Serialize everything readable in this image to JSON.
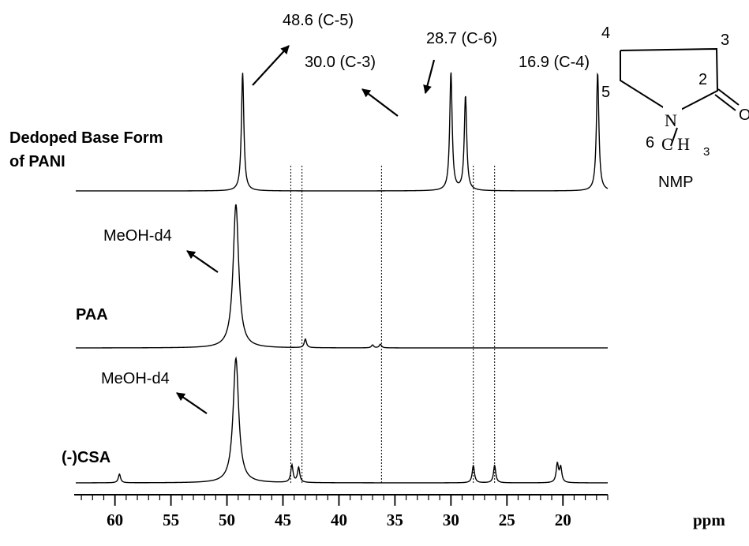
{
  "chart_data": {
    "type": "line",
    "xlabel": "ppm",
    "x_reversed": true,
    "xlim": [
      63.5,
      16.0
    ],
    "major_ticks": [
      60,
      55,
      50,
      45,
      40,
      35,
      30,
      25,
      20
    ],
    "tick_labels": [
      "60",
      "55",
      "50",
      "45",
      "40",
      "35",
      "30",
      "25",
      "20"
    ],
    "x_unit_label": "ppm",
    "series": [
      {
        "name": "Dedoped Base Form of PANI",
        "label_lines": [
          "Dedoped Base Form",
          "of PANI"
        ],
        "peaks": [
          {
            "x": 48.6,
            "height": 1.0
          },
          {
            "x": 30.0,
            "height": 1.0
          },
          {
            "x": 28.7,
            "height": 0.8
          },
          {
            "x": 16.9,
            "height": 1.0
          }
        ]
      },
      {
        "name": "PAA",
        "label_lines": [
          "PAA"
        ],
        "peaks": [
          {
            "x": 49.2,
            "height": 1.0
          },
          {
            "x": 43.0,
            "height": 0.06
          },
          {
            "x": 37.0,
            "height": 0.02
          },
          {
            "x": 36.3,
            "height": 0.025
          }
        ]
      },
      {
        "name": "(-)CSA",
        "label_lines": [
          "(-)CSA"
        ],
        "peaks": [
          {
            "x": 59.6,
            "height": 0.07
          },
          {
            "x": 49.2,
            "height": 1.0
          },
          {
            "x": 44.2,
            "height": 0.14
          },
          {
            "x": 43.6,
            "height": 0.12
          },
          {
            "x": 28.0,
            "height": 0.14
          },
          {
            "x": 26.1,
            "height": 0.14
          },
          {
            "x": 20.5,
            "height": 0.15
          },
          {
            "x": 20.2,
            "height": 0.12
          }
        ]
      }
    ],
    "dotted_reference_lines": [
      44.3,
      43.3,
      36.2,
      28.0,
      26.1
    ],
    "annotations": [
      {
        "text": "48.6 (C-5)",
        "x": 48.6
      },
      {
        "text": "30.0 (C-3)",
        "x": 30.0
      },
      {
        "text": "28.7 (C-6)",
        "x": 28.7
      },
      {
        "text": "16.9 (C-4)",
        "x": 16.9
      },
      {
        "text": "MeOH-d4",
        "series": "PAA"
      },
      {
        "text": "MeOH-d4",
        "series": "(-)CSA"
      }
    ]
  },
  "structure": {
    "name": "NMP",
    "atom_labels": {
      "c3": "3",
      "c4": "4",
      "c5": "5",
      "c2": "2",
      "c6": "6",
      "n": "N",
      "o": "O",
      "ch3": "C H"
    }
  },
  "colors": {
    "line": "#000000",
    "background": "#ffffff"
  }
}
